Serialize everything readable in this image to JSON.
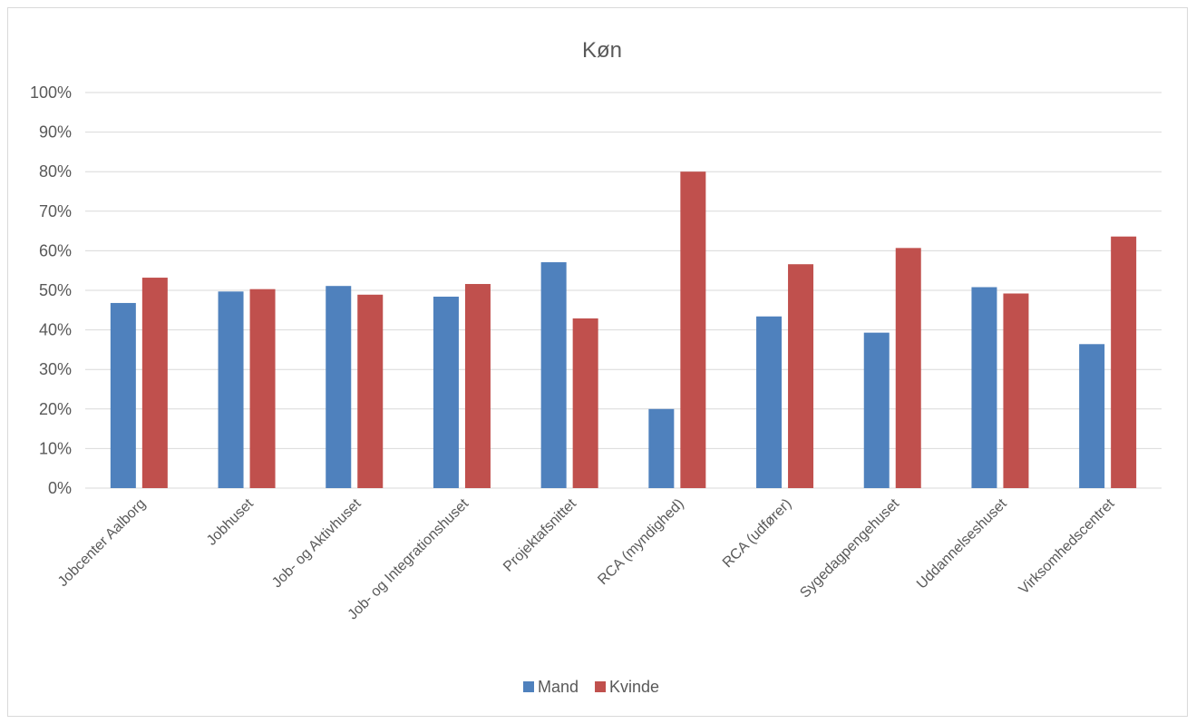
{
  "chart_data": {
    "type": "bar",
    "title": "Køn",
    "xlabel": "",
    "ylabel": "",
    "ylim": [
      0,
      100
    ],
    "yticks": [
      "0%",
      "10%",
      "20%",
      "30%",
      "40%",
      "50%",
      "60%",
      "70%",
      "80%",
      "90%",
      "100%"
    ],
    "grid": true,
    "legend_position": "bottom",
    "categories": [
      "Jobcenter Aalborg",
      "Jobhuset",
      "Job- og Aktivhuset",
      "Job- og Integrationshuset",
      "Projektafsnittet",
      "RCA (myndighed)",
      "RCA (udfører)",
      "Sygedagpengehuset",
      "Uddannelseshuset",
      "Virksomhedscentret"
    ],
    "series": [
      {
        "name": "Mand",
        "color": "#4f81bd",
        "values": [
          46.8,
          49.7,
          51.1,
          48.4,
          57.1,
          20.0,
          43.4,
          39.3,
          50.8,
          36.4
        ]
      },
      {
        "name": "Kvinde",
        "color": "#c0504d",
        "values": [
          53.2,
          50.3,
          48.9,
          51.6,
          42.9,
          80.0,
          56.6,
          60.7,
          49.2,
          63.6
        ]
      }
    ]
  }
}
